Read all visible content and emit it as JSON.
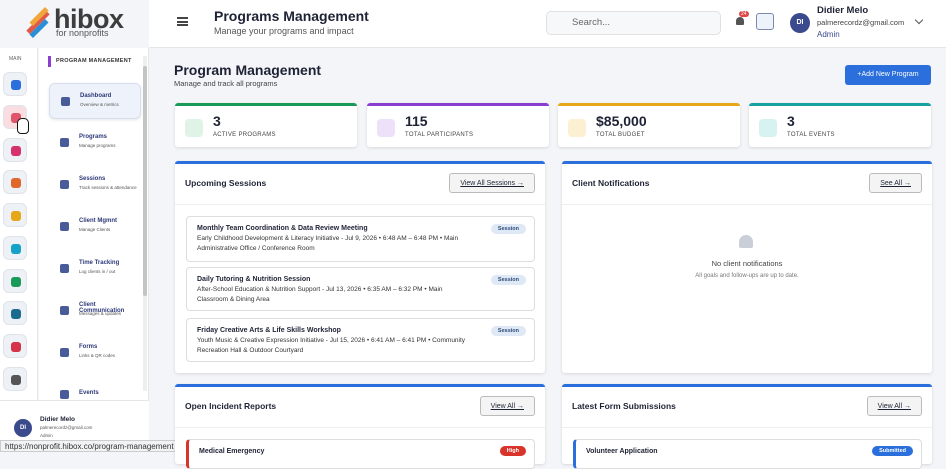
{
  "logo": {
    "name": "hibox",
    "tagline": "for nonprofits"
  },
  "rail": {
    "label": "MAIN"
  },
  "sidebar": {
    "heading": "PROGRAM MANAGEMENT",
    "items": [
      {
        "title": "Dashboard",
        "subtitle": "Overview & metrics"
      },
      {
        "title": "Programs",
        "subtitle": "Manage programs"
      },
      {
        "title": "Sessions",
        "subtitle": "Track sessions & attendance"
      },
      {
        "title": "Client Mgmnt",
        "subtitle": "Manage Clients"
      },
      {
        "title": "Time Tracking",
        "subtitle": "Log clients in / out"
      },
      {
        "title": "Client Communication",
        "subtitle": "Messages & updates"
      },
      {
        "title": "Forms",
        "subtitle": "Links & QR codes"
      },
      {
        "title": "Events",
        "subtitle": ""
      }
    ]
  },
  "sidebar_user": {
    "initials": "DI",
    "name": "Didier Melo",
    "email": "palmerecordz@gmail.com",
    "role": "Admin"
  },
  "status_bar": {
    "url": "https://nonprofit.hibox.co/program-management"
  },
  "header": {
    "title": "Programs Management",
    "subtitle": "Manage your programs and impact",
    "search_placeholder": "Search...",
    "badge": "24",
    "user": {
      "initials": "DI",
      "name": "Didier Melo",
      "email": "palmerecordz@gmail.com",
      "role": "Admin"
    }
  },
  "main": {
    "title": "Program Management",
    "subtitle": "Manage and track all programs",
    "button": "+Add New Program",
    "stats": [
      {
        "value": "3",
        "label": "ACTIVE PROGRAMS"
      },
      {
        "value": "115",
        "label": "TOTAL PARTICIPANTS"
      },
      {
        "value": "$85,000",
        "label": "TOTAL BUDGET"
      },
      {
        "value": "3",
        "label": "TOTAL EVENTS"
      }
    ],
    "sessions": {
      "title": "Upcoming Sessions",
      "link": "View All Sessions →",
      "items": [
        {
          "title": "Monthly Team Coordination & Data Review Meeting",
          "detail": "Early Childhood Development & Literacy Initiative - Jul 9, 2026 • 6:48 AM – 6:48 PM • Main Administrative Office / Conference Room",
          "badge": "Session"
        },
        {
          "title": "Daily Tutoring & Nutrition Session",
          "detail": "After-School Education & Nutrition Support - Jul 13, 2026 • 6:35 AM – 6:32 PM • Main Classroom & Dining Area",
          "badge": "Session"
        },
        {
          "title": "Friday Creative Arts & Life Skills Workshop",
          "detail": "Youth Music & Creative Expression Initiative - Jul 15, 2026 • 6:41 AM – 6:41 PM • Community Recreation Hall & Outdoor Courtyard",
          "badge": "Session"
        }
      ]
    },
    "notifications": {
      "title": "Client Notifications",
      "link": "See All →",
      "empty_title": "No client notifications",
      "empty_text": "All goals and follow-ups are up to date."
    },
    "incidents": {
      "title": "Open Incident Reports",
      "link": "View All →",
      "items": [
        {
          "title": "Medical Emergency",
          "badge": "High"
        }
      ]
    },
    "forms": {
      "title": "Latest Form Submissions",
      "link": "View All →",
      "items": [
        {
          "title": "Volunteer Application",
          "badge": "Submitted"
        }
      ]
    }
  }
}
